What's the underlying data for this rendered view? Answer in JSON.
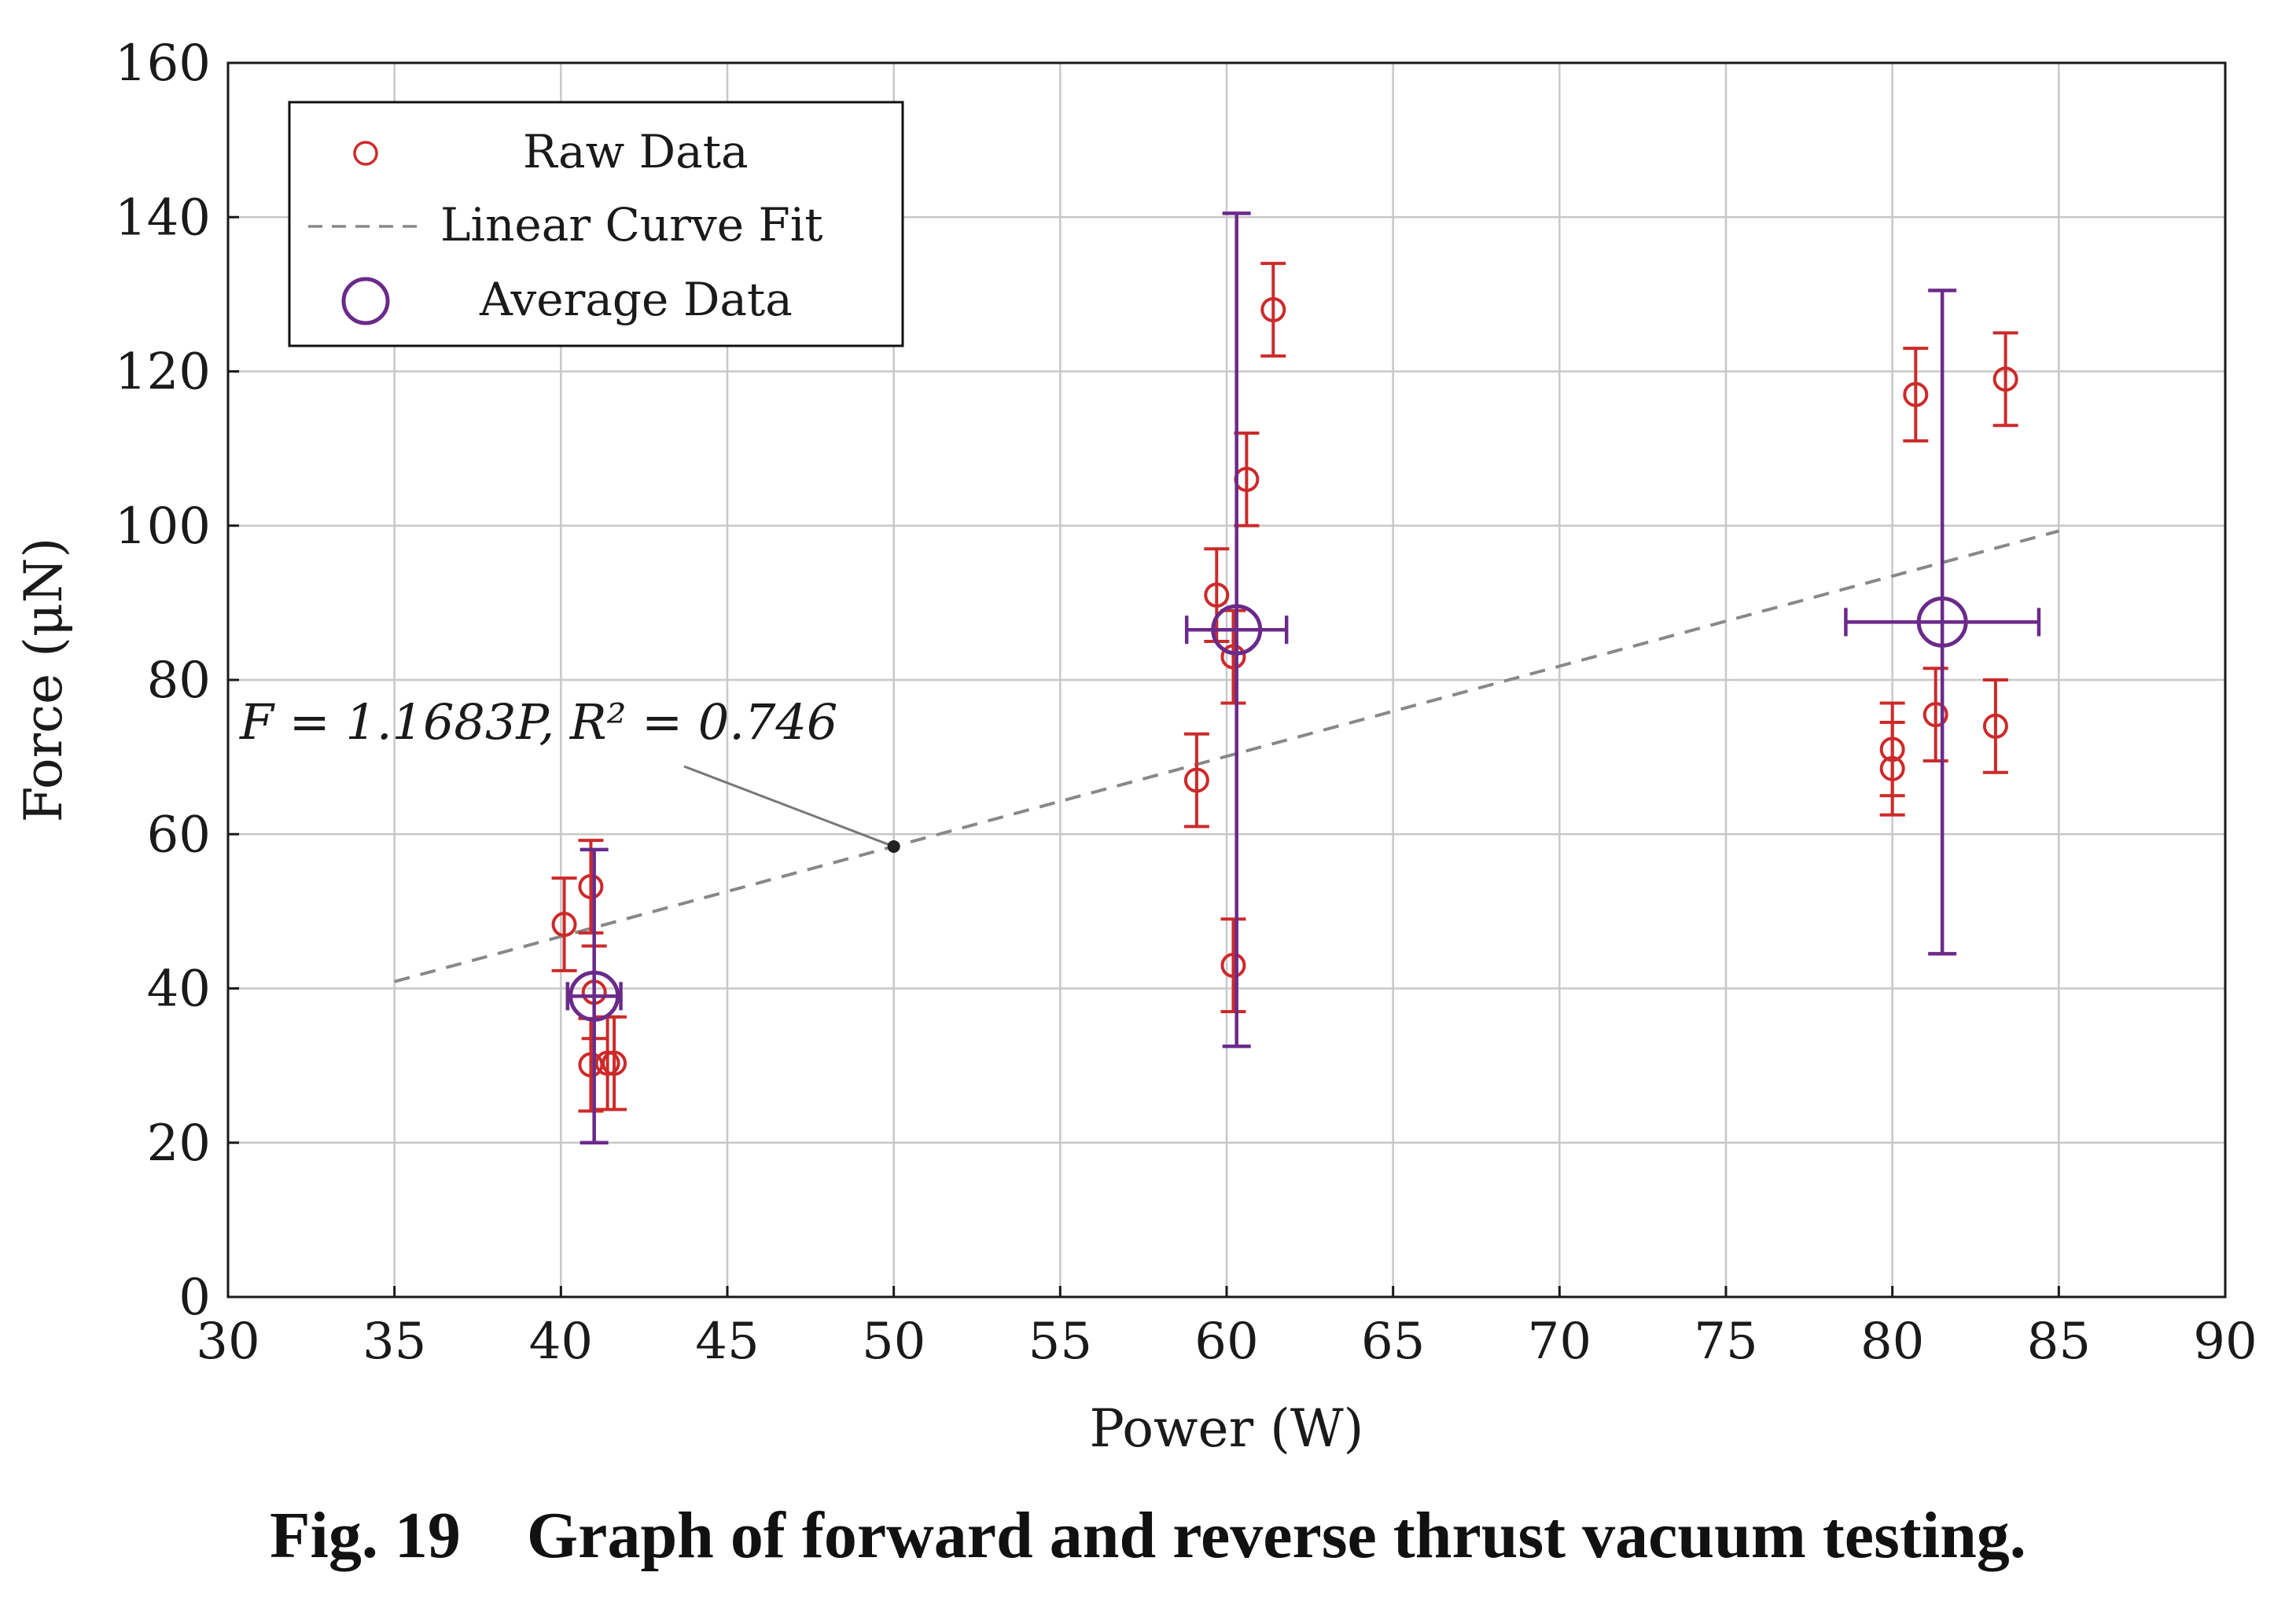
{
  "caption": "Fig. 19    Graph of forward and reverse thrust vacuum testing.",
  "colors": {
    "raw": "#cc2a2a",
    "average": "#6a2a8a",
    "fit": "#888888",
    "grid": "#c8c8c8",
    "axis": "#1a1a1a"
  },
  "chart_data": {
    "type": "scatter",
    "xlabel": "Power (W)",
    "ylabel": "Force (μN)",
    "xlim": [
      30,
      90
    ],
    "ylim": [
      0,
      160
    ],
    "xticks": [
      30,
      35,
      40,
      45,
      50,
      55,
      60,
      65,
      70,
      75,
      80,
      85,
      90
    ],
    "yticks": [
      0,
      20,
      40,
      60,
      80,
      100,
      120,
      140,
      160
    ],
    "grid": true,
    "legend": {
      "position": "top-left",
      "entries": [
        "Raw Data",
        "Linear Curve Fit",
        "Average Data"
      ]
    },
    "annotation": {
      "text": "F = 1.1683P, R² = 0.746",
      "point": [
        50,
        58.4
      ]
    },
    "series": [
      {
        "name": "Raw Data",
        "style": "small-circle",
        "points": [
          {
            "x": 40.1,
            "y": 48.3,
            "err": 6
          },
          {
            "x": 40.9,
            "y": 53.2,
            "err": 6
          },
          {
            "x": 41.0,
            "y": 39.5,
            "err": 6
          },
          {
            "x": 40.9,
            "y": 30.1,
            "err": 6
          },
          {
            "x": 41.4,
            "y": 30.3,
            "err": 6
          },
          {
            "x": 41.6,
            "y": 30.3,
            "err": 6
          },
          {
            "x": 59.1,
            "y": 67.0,
            "err": 6
          },
          {
            "x": 59.7,
            "y": 91.0,
            "err": 6
          },
          {
            "x": 60.2,
            "y": 83.0,
            "err": 6
          },
          {
            "x": 60.2,
            "y": 43.0,
            "err": 6
          },
          {
            "x": 60.6,
            "y": 106.0,
            "err": 6
          },
          {
            "x": 61.4,
            "y": 128.0,
            "err": 6
          },
          {
            "x": 80.0,
            "y": 71.0,
            "err": 6
          },
          {
            "x": 80.0,
            "y": 68.5,
            "err": 6
          },
          {
            "x": 80.7,
            "y": 117.0,
            "err": 6
          },
          {
            "x": 81.3,
            "y": 75.5,
            "err": 6
          },
          {
            "x": 83.1,
            "y": 74.0,
            "err": 6
          },
          {
            "x": 83.4,
            "y": 119.0,
            "err": 6
          }
        ]
      },
      {
        "name": "Average Data",
        "style": "large-circle",
        "points": [
          {
            "x": 41.0,
            "y": 39.0,
            "xerr": 0.8,
            "yerr": 19
          },
          {
            "x": 60.3,
            "y": 86.5,
            "xerr": 1.5,
            "yerr": 54
          },
          {
            "x": 81.5,
            "y": 87.5,
            "xerr": 2.9,
            "yerr": 43
          }
        ]
      },
      {
        "name": "Linear Curve Fit",
        "style": "dashed-line",
        "slope": 1.1683,
        "x_range": [
          35,
          85
        ]
      }
    ]
  }
}
